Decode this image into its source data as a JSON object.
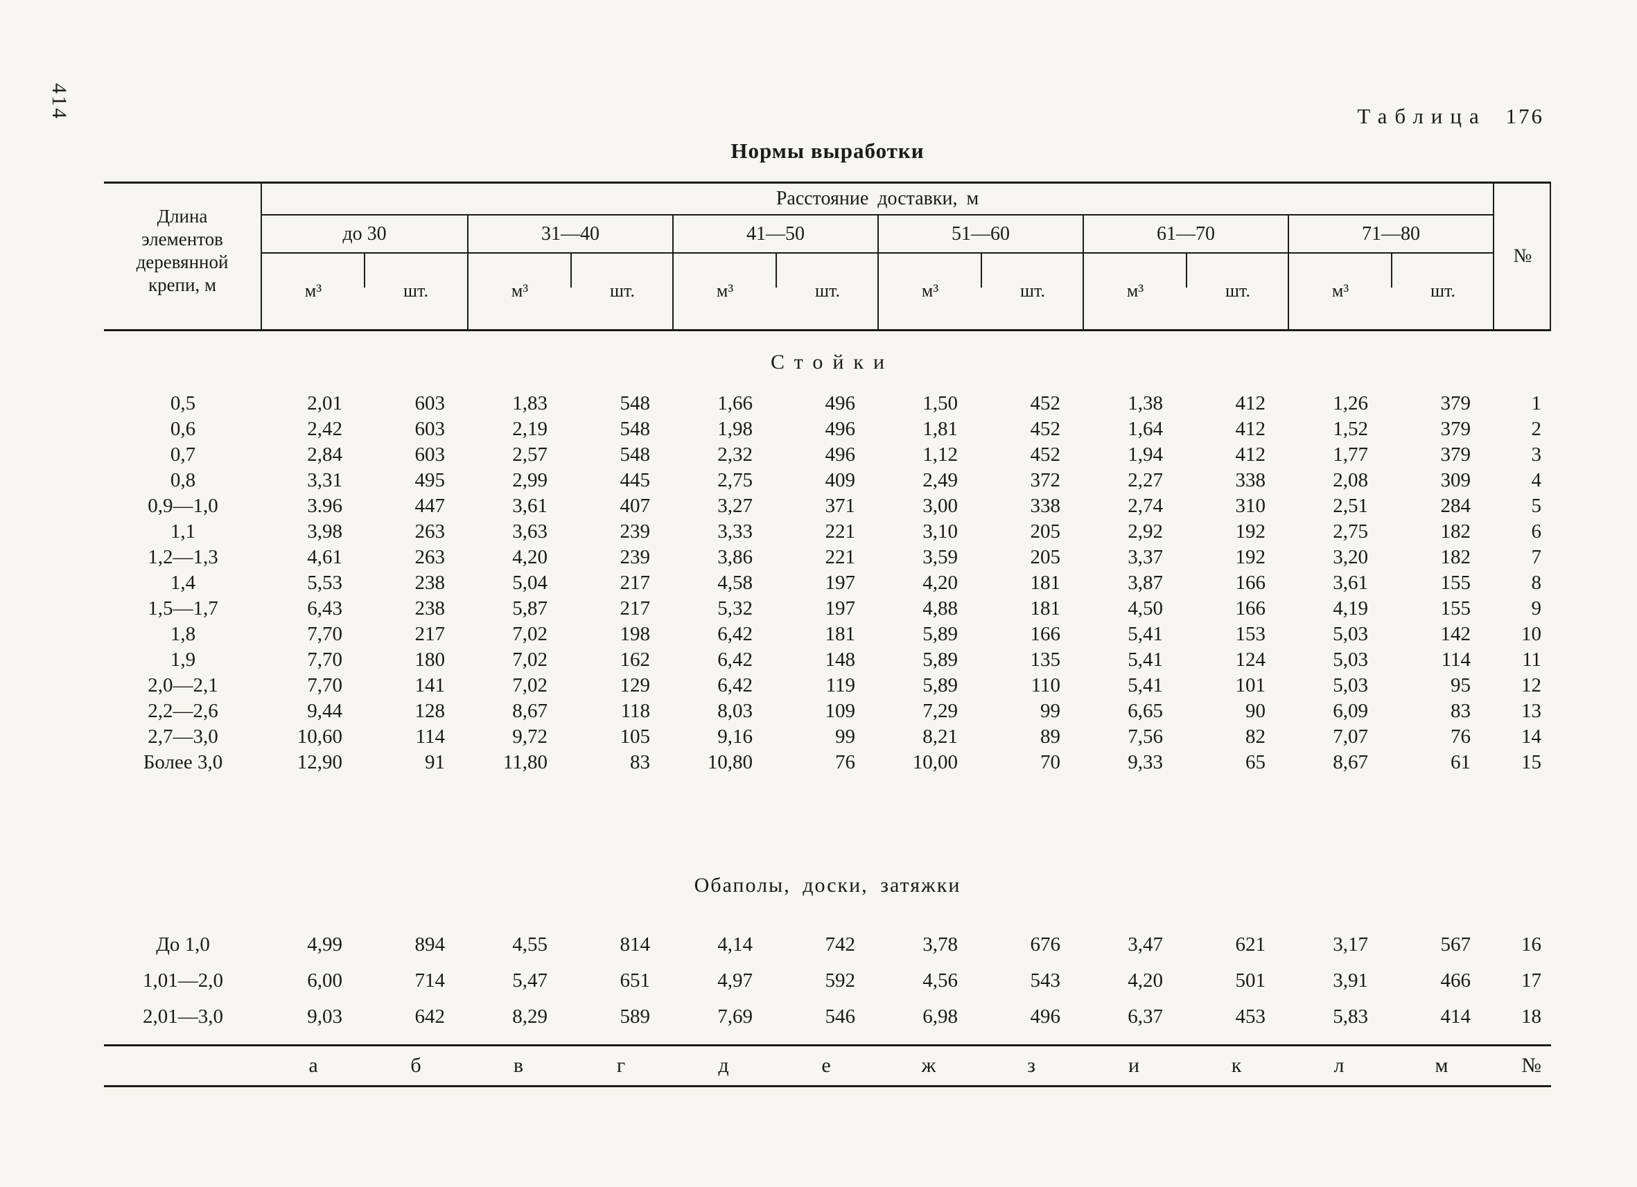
{
  "page": {
    "number": "414",
    "table_label_word": "Таблица",
    "table_label_number": "176",
    "title": "Нормы выработки"
  },
  "table": {
    "corner_header_lines": [
      "Длина",
      "элементов",
      "деревянной",
      "крепи, м"
    ],
    "distance_header": "Расстояние доставки, м",
    "number_header": "№",
    "groups": [
      "до 30",
      "31—40",
      "41—50",
      "51—60",
      "61—70",
      "71—80"
    ],
    "unit_volume": "м³",
    "unit_count": "шт.",
    "sections": [
      {
        "title": "Стойки",
        "letter_spaced": true,
        "rows": [
          {
            "length": "0,5",
            "values": [
              "2,01",
              "603",
              "1,83",
              "548",
              "1,66",
              "496",
              "1,50",
              "452",
              "1,38",
              "412",
              "1,26",
              "379"
            ],
            "num": "1"
          },
          {
            "length": "0,6",
            "values": [
              "2,42",
              "603",
              "2,19",
              "548",
              "1,98",
              "496",
              "1,81",
              "452",
              "1,64",
              "412",
              "1,52",
              "379"
            ],
            "num": "2"
          },
          {
            "length": "0,7",
            "values": [
              "2,84",
              "603",
              "2,57",
              "548",
              "2,32",
              "496",
              "1,12",
              "452",
              "1,94",
              "412",
              "1,77",
              "379"
            ],
            "num": "3"
          },
          {
            "length": "0,8",
            "values": [
              "3,31",
              "495",
              "2,99",
              "445",
              "2,75",
              "409",
              "2,49",
              "372",
              "2,27",
              "338",
              "2,08",
              "309"
            ],
            "num": "4"
          },
          {
            "length": "0,9—1,0",
            "values": [
              "3.96",
              "447",
              "3,61",
              "407",
              "3,27",
              "371",
              "3,00",
              "338",
              "2,74",
              "310",
              "2,51",
              "284"
            ],
            "num": "5"
          },
          {
            "length": "1,1",
            "values": [
              "3,98",
              "263",
              "3,63",
              "239",
              "3,33",
              "221",
              "3,10",
              "205",
              "2,92",
              "192",
              "2,75",
              "182"
            ],
            "num": "6"
          },
          {
            "length": "1,2—1,3",
            "values": [
              "4,61",
              "263",
              "4,20",
              "239",
              "3,86",
              "221",
              "3,59",
              "205",
              "3,37",
              "192",
              "3,20",
              "182"
            ],
            "num": "7"
          },
          {
            "length": "1,4",
            "values": [
              "5,53",
              "238",
              "5,04",
              "217",
              "4,58",
              "197",
              "4,20",
              "181",
              "3,87",
              "166",
              "3,61",
              "155"
            ],
            "num": "8"
          },
          {
            "length": "1,5—1,7",
            "values": [
              "6,43",
              "238",
              "5,87",
              "217",
              "5,32",
              "197",
              "4,88",
              "181",
              "4,50",
              "166",
              "4,19",
              "155"
            ],
            "num": "9"
          },
          {
            "length": "1,8",
            "values": [
              "7,70",
              "217",
              "7,02",
              "198",
              "6,42",
              "181",
              "5,89",
              "166",
              "5,41",
              "153",
              "5,03",
              "142"
            ],
            "num": "10"
          },
          {
            "length": "1,9",
            "values": [
              "7,70",
              "180",
              "7,02",
              "162",
              "6,42",
              "148",
              "5,89",
              "135",
              "5,41",
              "124",
              "5,03",
              "114"
            ],
            "num": "11"
          },
          {
            "length": "2,0—2,1",
            "values": [
              "7,70",
              "141",
              "7,02",
              "129",
              "6,42",
              "119",
              "5,89",
              "110",
              "5,41",
              "101",
              "5,03",
              "95"
            ],
            "num": "12"
          },
          {
            "length": "2,2—2,6",
            "values": [
              "9,44",
              "128",
              "8,67",
              "118",
              "8,03",
              "109",
              "7,29",
              "99",
              "6,65",
              "90",
              "6,09",
              "83"
            ],
            "num": "13"
          },
          {
            "length": "2,7—3,0",
            "values": [
              "10,60",
              "114",
              "9,72",
              "105",
              "9,16",
              "99",
              "8,21",
              "89",
              "7,56",
              "82",
              "7,07",
              "76"
            ],
            "num": "14"
          },
          {
            "length": "Более 3,0",
            "values": [
              "12,90",
              "91",
              "11,80",
              "83",
              "10,80",
              "76",
              "10,00",
              "70",
              "9,33",
              "65",
              "8,67",
              "61"
            ],
            "num": "15"
          }
        ]
      },
      {
        "title": "Обаполы, доски, затяжки",
        "letter_spaced": false,
        "rows": [
          {
            "length": "До 1,0",
            "values": [
              "4,99",
              "894",
              "4,55",
              "814",
              "4,14",
              "742",
              "3,78",
              "676",
              "3,47",
              "621",
              "3,17",
              "567"
            ],
            "num": "16"
          },
          {
            "length": "1,01—2,0",
            "values": [
              "6,00",
              "714",
              "5,47",
              "651",
              "4,97",
              "592",
              "4,56",
              "543",
              "4,20",
              "501",
              "3,91",
              "466"
            ],
            "num": "17"
          },
          {
            "length": "2,01—3,0",
            "values": [
              "9,03",
              "642",
              "8,29",
              "589",
              "7,69",
              "546",
              "6,98",
              "496",
              "6,37",
              "453",
              "5,83",
              "414"
            ],
            "num": "18"
          }
        ]
      }
    ],
    "footer_letters": [
      "а",
      "б",
      "в",
      "г",
      "д",
      "е",
      "ж",
      "з",
      "и",
      "к",
      "л",
      "м"
    ],
    "footer_number": "№"
  }
}
